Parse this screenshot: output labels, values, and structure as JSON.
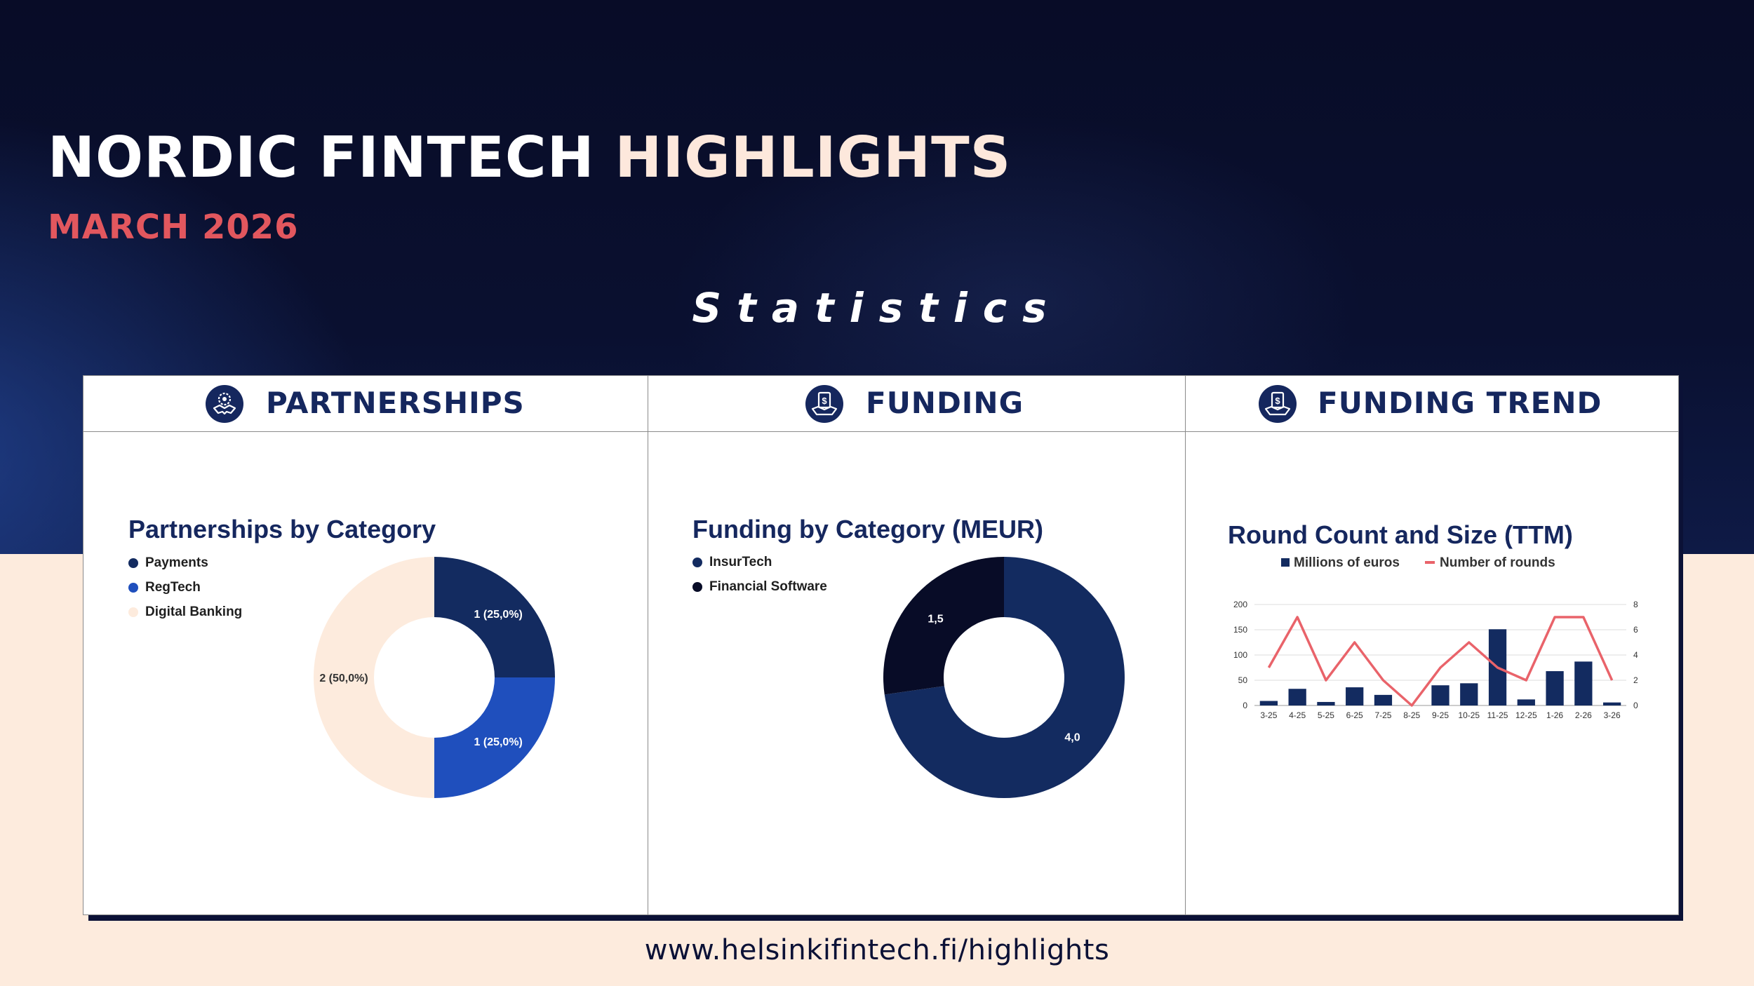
{
  "header": {
    "title_main": "NORDIC FINTECH",
    "title_highlight": "HIGHLIGHTS",
    "subtitle": "MARCH 2026",
    "section_title": "Statistics"
  },
  "panels": {
    "partnerships": {
      "label": "PARTNERSHIPS",
      "icon": "handshake-gear-icon"
    },
    "funding": {
      "label": "FUNDING",
      "icon": "money-hand-icon"
    },
    "trend": {
      "label": "FUNDING TREND",
      "icon": "money-hand-icon"
    }
  },
  "colors": {
    "navy": "#142a5e",
    "blue": "#1f4fbd",
    "peach": "#fdebdd",
    "dark": "#080c27",
    "accent_red": "#e2575e",
    "line_red": "#e9636a"
  },
  "chart_data": [
    {
      "type": "pie",
      "title": "Partnerships by Category",
      "categories": [
        "Payments",
        "RegTech",
        "Digital Banking"
      ],
      "values": [
        1,
        1,
        2
      ],
      "labels": [
        "1 (25,0%)",
        "1 (25,0%)",
        "2 (50,0%)"
      ],
      "colors": [
        "#132b60",
        "#1f4fbd",
        "#fdebdd"
      ],
      "legend": "top-left"
    },
    {
      "type": "pie",
      "title": "Funding by Category (MEUR)",
      "categories": [
        "InsurTech",
        "Financial Software"
      ],
      "values": [
        4.0,
        1.5
      ],
      "labels": [
        "4,0",
        "1,5"
      ],
      "colors": [
        "#132b60",
        "#080c27"
      ],
      "legend": "top-left"
    },
    {
      "type": "bar",
      "title": "Round Count and Size (TTM)",
      "categories": [
        "3-25",
        "4-25",
        "5-25",
        "6-25",
        "7-25",
        "8-25",
        "9-25",
        "10-25",
        "11-25",
        "12-25",
        "1-26",
        "2-26",
        "3-26"
      ],
      "series": [
        {
          "name": "Millions of euros",
          "type": "bar",
          "axis": "left",
          "values": [
            9,
            33,
            7,
            36,
            21,
            0,
            40,
            44,
            151,
            12,
            68,
            87,
            6
          ]
        },
        {
          "name": "Number of rounds",
          "type": "line",
          "axis": "right",
          "values": [
            3,
            7,
            2,
            5,
            2,
            0,
            3,
            5,
            3,
            2,
            7,
            7,
            2
          ]
        }
      ],
      "ylim_left": [
        0,
        200
      ],
      "yticks_left": [
        "0",
        "50",
        "100",
        "150",
        "200"
      ],
      "ylim_right": [
        0,
        8
      ],
      "yticks_right": [
        "0",
        "2",
        "4",
        "6",
        "8"
      ],
      "grid": true,
      "legend": "top-center"
    }
  ],
  "footer": {
    "url": "www.helsinkifintech.fi/highlights"
  }
}
